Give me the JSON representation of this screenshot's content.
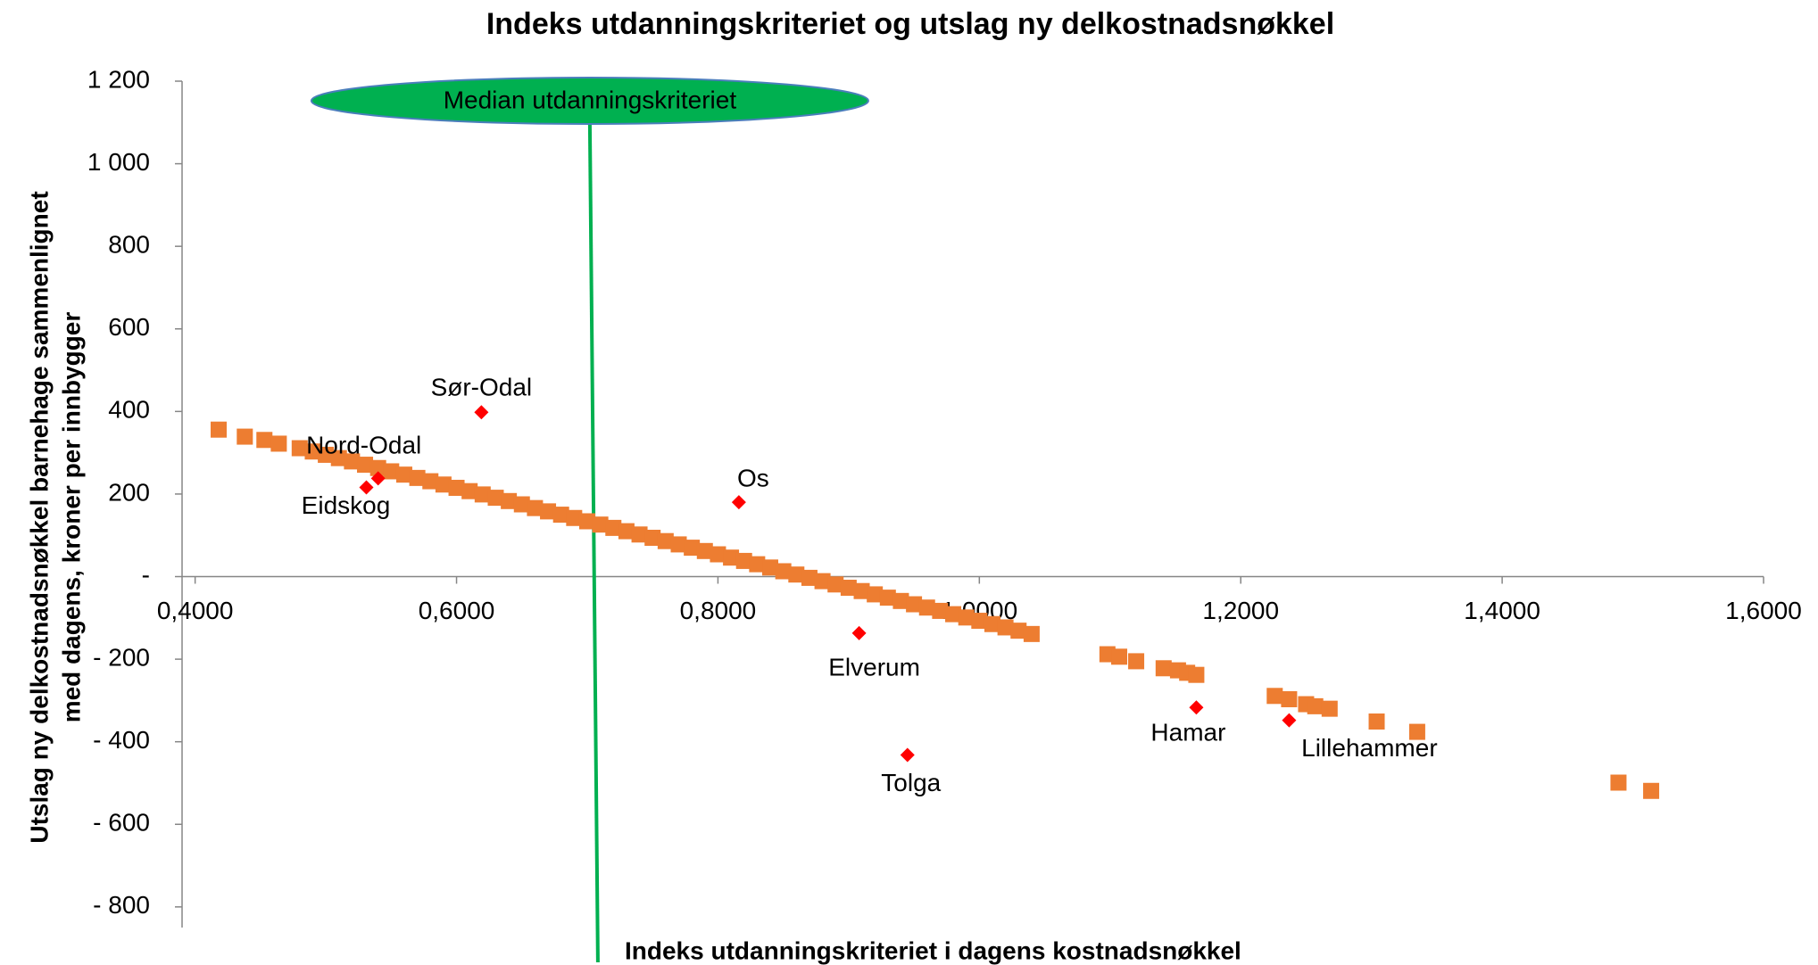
{
  "chart_data": {
    "type": "scatter",
    "title": "Indeks utdanningskriteriet og utslag ny delkostnadsnøkkel",
    "xlabel": "Indeks utdanningskriteriet i dagens kostnadsnøkkel",
    "ylabel": [
      "Utslag ny delkostnadsnøkkel barnehage sammenlignet",
      "med dagens, kroner per innbygger"
    ],
    "xlim": [
      0.39,
      1.6
    ],
    "xticks": [
      {
        "value": 0.4,
        "label": "0,4000"
      },
      {
        "value": 0.6,
        "label": "0,6000"
      },
      {
        "value": 0.8,
        "label": "0,8000"
      },
      {
        "value": 1.0,
        "label": "1,0000"
      },
      {
        "value": 1.2,
        "label": "1,2000"
      },
      {
        "value": 1.4,
        "label": "1,4000"
      },
      {
        "value": 1.6,
        "label": "1,6000"
      }
    ],
    "ylim": [
      -850,
      1200
    ],
    "yticks": [
      {
        "value": 1200,
        "label": "1 200"
      },
      {
        "value": 1000,
        "label": "1 000"
      },
      800,
      600,
      400,
      200,
      {
        "value": 0,
        "label": "-"
      },
      {
        "value": -200,
        "label": "- 200"
      },
      {
        "value": -400,
        "label": "- 400"
      },
      {
        "value": -600,
        "label": "- 600"
      },
      {
        "value": -800,
        "label": "- 800"
      }
    ],
    "median": {
      "label": "Median utdanningskriteriet",
      "x": 0.702,
      "color": "#00b050"
    },
    "series": [
      {
        "color": "#ed7d31",
        "marker": "square",
        "x": [
          0.418,
          0.438,
          0.453,
          0.464,
          0.48,
          0.49,
          0.5,
          0.51,
          0.52,
          0.53,
          0.54,
          0.55,
          0.56,
          0.57,
          0.58,
          0.59,
          0.6,
          0.61,
          0.62,
          0.63,
          0.64,
          0.65,
          0.66,
          0.67,
          0.68,
          0.69,
          0.7,
          0.71,
          0.72,
          0.73,
          0.74,
          0.75,
          0.76,
          0.77,
          0.78,
          0.79,
          0.8,
          0.81,
          0.82,
          0.83,
          0.84,
          0.85,
          0.86,
          0.87,
          0.88,
          0.89,
          0.9,
          0.91,
          0.92,
          0.93,
          0.94,
          0.95,
          0.96,
          0.97,
          0.98,
          0.99,
          1.0,
          1.01,
          1.02,
          1.03,
          1.04,
          1.098,
          1.107,
          1.12,
          1.141,
          1.152,
          1.159,
          1.166,
          1.226,
          1.237,
          1.25,
          1.257,
          1.268,
          1.304,
          1.335,
          1.489,
          1.514
        ],
        "values": [
          356,
          339,
          331,
          322,
          311,
          303,
          295,
          287,
          279,
          271,
          263,
          255,
          247,
          239,
          231,
          223,
          215,
          207,
          199,
          191,
          183,
          175,
          166,
          158,
          150,
          142,
          134,
          126,
          118,
          110,
          102,
          94,
          86,
          78,
          70,
          62,
          54,
          46,
          38,
          30,
          22,
          13,
          5,
          -3,
          -11,
          -19,
          -27,
          -35,
          -43,
          -51,
          -59,
          -67,
          -75,
          -83,
          -91,
          -99,
          -107,
          -115,
          -123,
          -131,
          -139,
          -188,
          -194,
          -205,
          -222,
          -227,
          -233,
          -238,
          -289,
          -297,
          -309,
          -314,
          -320,
          -351,
          -376,
          -499,
          -519
        ]
      },
      {
        "color": "#ff0000",
        "marker": "diamond",
        "labels": [
          "Sør-Odal",
          "Nord-Odal",
          "Eidskog",
          "Os",
          "Elverum",
          "Tolga",
          "Hamar",
          "Lillehammer"
        ],
        "x": [
          0.619,
          0.54,
          0.531,
          0.816,
          0.908,
          0.945,
          1.166,
          1.237
        ],
        "values": [
          398,
          238,
          216,
          180,
          -137,
          -432,
          -317,
          -348
        ]
      }
    ]
  }
}
